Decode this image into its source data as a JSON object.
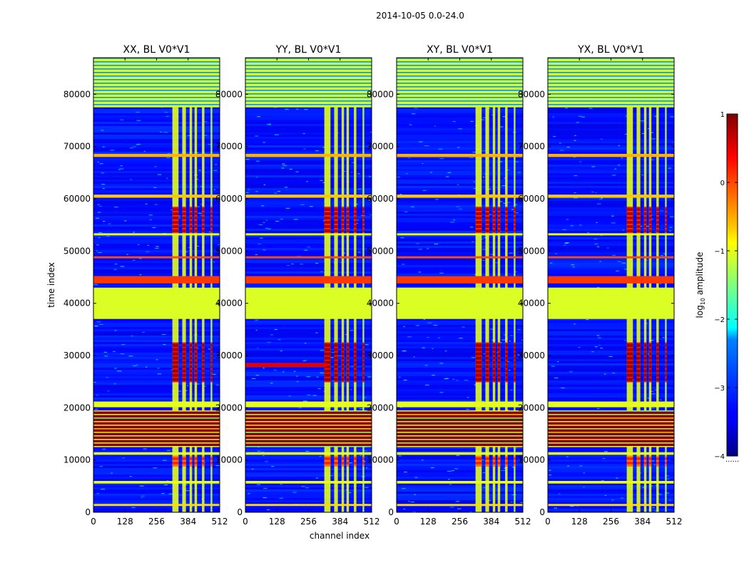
{
  "chart_data": {
    "type": "heatmap",
    "suptitle": "2014-10-05 0.0-24.0",
    "xlabel": "channel index",
    "ylabel": "time index",
    "xlim": [
      0,
      512
    ],
    "ylim": [
      0,
      87000
    ],
    "xticks": [
      0,
      128,
      256,
      384,
      512
    ],
    "yticks": [
      0,
      10000,
      20000,
      30000,
      40000,
      50000,
      60000,
      70000,
      80000
    ],
    "colormap": "jet",
    "colorbar": {
      "label": "log₁₀ amplitude",
      "label_base": "log",
      "label_sub": "10",
      "label_rest": " amplitude",
      "range": [
        -4,
        1
      ],
      "ticks": [
        -4,
        -3,
        -2,
        -1,
        0,
        1
      ],
      "tick_labels": [
        "−4",
        "−3",
        "−2",
        "−1",
        "0",
        "1"
      ],
      "note": "......"
    },
    "panels": [
      {
        "title": "XX, BL V0*V1",
        "pol": "XX",
        "rfi_start": 330,
        "stripe_at_28000": false
      },
      {
        "title": "YY, BL V0*V1",
        "pol": "YY",
        "rfi_start": 320,
        "stripe_at_28000": true
      },
      {
        "title": "XY, BL V0*V1",
        "pol": "XY",
        "rfi_start": 330,
        "stripe_at_28000": false
      },
      {
        "title": "YX, BL V0*V1",
        "pol": "YX",
        "rfi_start": 325,
        "stripe_at_28000": false
      }
    ],
    "rfi_channel_columns": [
      {
        "from": 320,
        "to": 345,
        "level": -1
      },
      {
        "from": 360,
        "to": 375,
        "level": -1
      },
      {
        "from": 390,
        "to": 400,
        "level": -1
      },
      {
        "from": 410,
        "to": 420,
        "level": -1
      },
      {
        "from": 440,
        "to": 450,
        "level": -1
      },
      {
        "from": 475,
        "to": 482,
        "level": -1.2
      }
    ],
    "rfi_blocks": [
      {
        "t_from": 25000,
        "t_to": 32500,
        "level": 0.85
      },
      {
        "t_from": 53500,
        "t_to": 58500,
        "level": 0.7
      },
      {
        "t_from": 8800,
        "t_to": 10800,
        "level": 0.2
      }
    ],
    "time_bands": [
      {
        "t_from": 77500,
        "t_to": 87000,
        "level": -1.1,
        "striped": true
      },
      {
        "t_from": 43800,
        "t_to": 45200,
        "level": 0.1
      },
      {
        "t_from": 37000,
        "t_to": 43000,
        "level": -1.05
      },
      {
        "t_from": 12500,
        "t_to": 19500,
        "level": 0.95,
        "striped": true
      },
      {
        "t_from": 20100,
        "t_to": 21200,
        "level": -1.0
      },
      {
        "t_from": 68000,
        "t_to": 68600,
        "level": -0.5
      },
      {
        "t_from": 60200,
        "t_to": 60800,
        "level": -0.6
      },
      {
        "t_from": 48600,
        "t_to": 49000,
        "level": 0.0
      },
      {
        "t_from": 53000,
        "t_to": 53400,
        "level": -1.0
      },
      {
        "t_from": 11000,
        "t_to": 11500,
        "level": -1.0
      },
      {
        "t_from": 5500,
        "t_to": 6000,
        "level": -1.0
      },
      {
        "t_from": 1200,
        "t_to": 1600,
        "level": -0.7
      }
    ],
    "background_level": -3.3
  }
}
